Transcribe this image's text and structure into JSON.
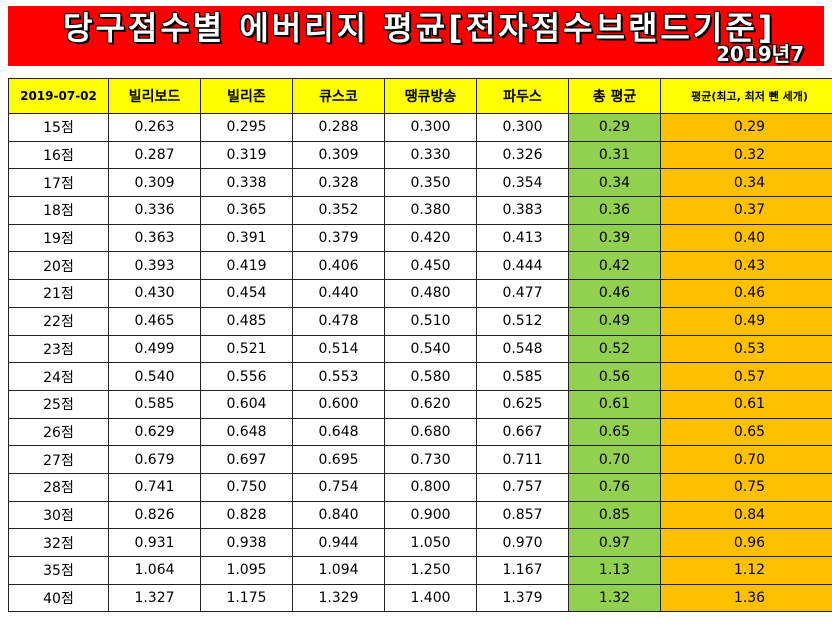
{
  "banner": {
    "title": "당구점수별 에버리지 평균[전자점수브랜드기준]",
    "subtitle": "2019년7"
  },
  "table": {
    "headers": [
      "2019-07-02",
      "빌리보드",
      "빌리존",
      "큐스코",
      "땡큐방송",
      "파두스",
      "총 평균",
      "평균(최고, 최저 뺀 세개)"
    ],
    "rows": [
      {
        "score": "15점",
        "values": [
          "0.263",
          "0.295",
          "0.288",
          "0.300",
          "0.300"
        ],
        "avg": "0.29",
        "trim": "0.29"
      },
      {
        "score": "16점",
        "values": [
          "0.287",
          "0.319",
          "0.309",
          "0.330",
          "0.326"
        ],
        "avg": "0.31",
        "trim": "0.32"
      },
      {
        "score": "17점",
        "values": [
          "0.309",
          "0.338",
          "0.328",
          "0.350",
          "0.354"
        ],
        "avg": "0.34",
        "trim": "0.34"
      },
      {
        "score": "18점",
        "values": [
          "0.336",
          "0.365",
          "0.352",
          "0.380",
          "0.383"
        ],
        "avg": "0.36",
        "trim": "0.37"
      },
      {
        "score": "19점",
        "values": [
          "0.363",
          "0.391",
          "0.379",
          "0.420",
          "0.413"
        ],
        "avg": "0.39",
        "trim": "0.40"
      },
      {
        "score": "20점",
        "values": [
          "0.393",
          "0.419",
          "0.406",
          "0.450",
          "0.444"
        ],
        "avg": "0.42",
        "trim": "0.43"
      },
      {
        "score": "21점",
        "values": [
          "0.430",
          "0.454",
          "0.440",
          "0.480",
          "0.477"
        ],
        "avg": "0.46",
        "trim": "0.46"
      },
      {
        "score": "22점",
        "values": [
          "0.465",
          "0.485",
          "0.478",
          "0.510",
          "0.512"
        ],
        "avg": "0.49",
        "trim": "0.49"
      },
      {
        "score": "23점",
        "values": [
          "0.499",
          "0.521",
          "0.514",
          "0.540",
          "0.548"
        ],
        "avg": "0.52",
        "trim": "0.53"
      },
      {
        "score": "24점",
        "values": [
          "0.540",
          "0.556",
          "0.553",
          "0.580",
          "0.585"
        ],
        "avg": "0.56",
        "trim": "0.57"
      },
      {
        "score": "25점",
        "values": [
          "0.585",
          "0.604",
          "0.600",
          "0.620",
          "0.625"
        ],
        "avg": "0.61",
        "trim": "0.61"
      },
      {
        "score": "26점",
        "values": [
          "0.629",
          "0.648",
          "0.648",
          "0.680",
          "0.667"
        ],
        "avg": "0.65",
        "trim": "0.65"
      },
      {
        "score": "27점",
        "values": [
          "0.679",
          "0.697",
          "0.695",
          "0.730",
          "0.711"
        ],
        "avg": "0.70",
        "trim": "0.70"
      },
      {
        "score": "28점",
        "values": [
          "0.741",
          "0.750",
          "0.754",
          "0.800",
          "0.757"
        ],
        "avg": "0.76",
        "trim": "0.75"
      },
      {
        "score": "30점",
        "values": [
          "0.826",
          "0.828",
          "0.840",
          "0.900",
          "0.857"
        ],
        "avg": "0.85",
        "trim": "0.84"
      },
      {
        "score": "32점",
        "values": [
          "0.931",
          "0.938",
          "0.944",
          "1.050",
          "0.970"
        ],
        "avg": "0.97",
        "trim": "0.96"
      },
      {
        "score": "35점",
        "values": [
          "1.064",
          "1.095",
          "1.094",
          "1.250",
          "1.167"
        ],
        "avg": "1.13",
        "trim": "1.12"
      },
      {
        "score": "40점",
        "values": [
          "1.327",
          "1.175",
          "1.329",
          "1.400",
          "1.379"
        ],
        "avg": "1.32",
        "trim": "1.36"
      }
    ]
  },
  "colors": {
    "banner": "#ff0000",
    "header": "#ffff00",
    "avg_column": "#92d050",
    "trim_column": "#ffc000"
  }
}
